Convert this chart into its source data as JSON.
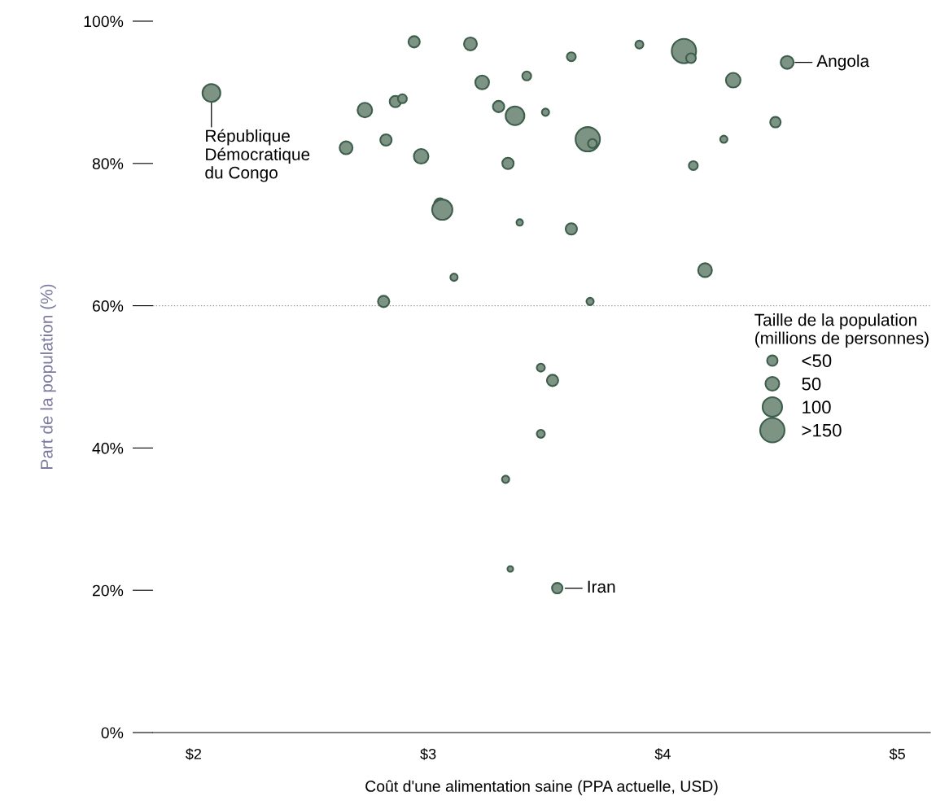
{
  "chart_data": {
    "type": "bubble",
    "xlabel": "Coût d'une alimentation saine (PPA actuelle, USD)",
    "ylabel": "Part de la population (%)",
    "legend_title": "Taille de la population\n(millions de personnes)",
    "x": [
      2.076,
      2.94,
      3.18,
      3.23,
      2.65,
      2.73,
      2.86,
      2.89,
      2.82,
      2.97,
      3.05,
      3.06,
      3.3,
      3.37,
      3.42,
      3.34,
      3.39,
      3.11,
      2.81,
      3.61,
      3.9,
      4.09,
      4.12,
      4.53,
      4.3,
      4.48,
      4.26,
      4.13,
      3.5,
      3.68,
      3.7,
      3.61,
      4.18,
      3.69,
      3.48,
      3.53,
      3.48,
      3.33,
      3.35,
      3.55
    ],
    "values": [
      89.9,
      97.1,
      96.8,
      91.4,
      82.2,
      87.5,
      88.7,
      89.1,
      83.3,
      81.0,
      74.3,
      73.5,
      88.0,
      86.7,
      92.3,
      80.0,
      71.7,
      64.0,
      60.6,
      95.0,
      96.7,
      95.8,
      94.8,
      94.2,
      91.7,
      85.8,
      83.4,
      79.7,
      87.2,
      83.4,
      82.8,
      70.8,
      65.0,
      60.6,
      51.3,
      49.5,
      42.0,
      35.6,
      23.0,
      20.3
    ],
    "sizes": [
      84,
      34,
      44,
      50,
      44,
      56,
      34,
      21,
      34,
      56,
      34,
      108,
      34,
      92,
      21,
      34,
      11,
      14,
      34,
      21,
      17,
      156,
      25,
      44,
      56,
      29,
      14,
      21,
      14,
      156,
      21,
      34,
      50,
      14,
      17,
      34,
      17,
      14,
      8.5,
      29
    ],
    "size_legend": [
      {
        "value": 29,
        "label": "<50"
      },
      50,
      100,
      {
        "value": 156,
        "label": ">150"
      }
    ],
    "color": "#7d9384",
    "xlim": [
      1.827,
      5.14
    ],
    "xticks": [
      {
        "value": 2,
        "label": "$2"
      },
      {
        "value": 3,
        "label": "$3"
      },
      {
        "value": 4,
        "label": "$4"
      },
      {
        "value": 5,
        "label": "$5"
      }
    ],
    "ylim": [
      0,
      100
    ],
    "yticks": [
      {
        "value": 0,
        "label": "0%"
      },
      {
        "value": 20,
        "label": "20%"
      },
      {
        "value": 40,
        "label": "40%"
      },
      {
        "value": 60,
        "label": "60%"
      },
      {
        "value": 80,
        "label": "80%"
      },
      {
        "value": 100,
        "label": "100%"
      }
    ],
    "ref_lines": [
      {
        "axis": "y",
        "value": 60,
        "line_style": "dotted",
        "color": "#999999"
      }
    ],
    "annotations": [
      {
        "text": "République\nDémocratique\ndu Congo",
        "x": 2.076,
        "y": 89.9
      },
      {
        "text": "Angola",
        "x": 4.53,
        "y": 94.2
      },
      {
        "text": "Iran",
        "x": 3.55,
        "y": 20.3
      }
    ],
    "grid": false
  }
}
